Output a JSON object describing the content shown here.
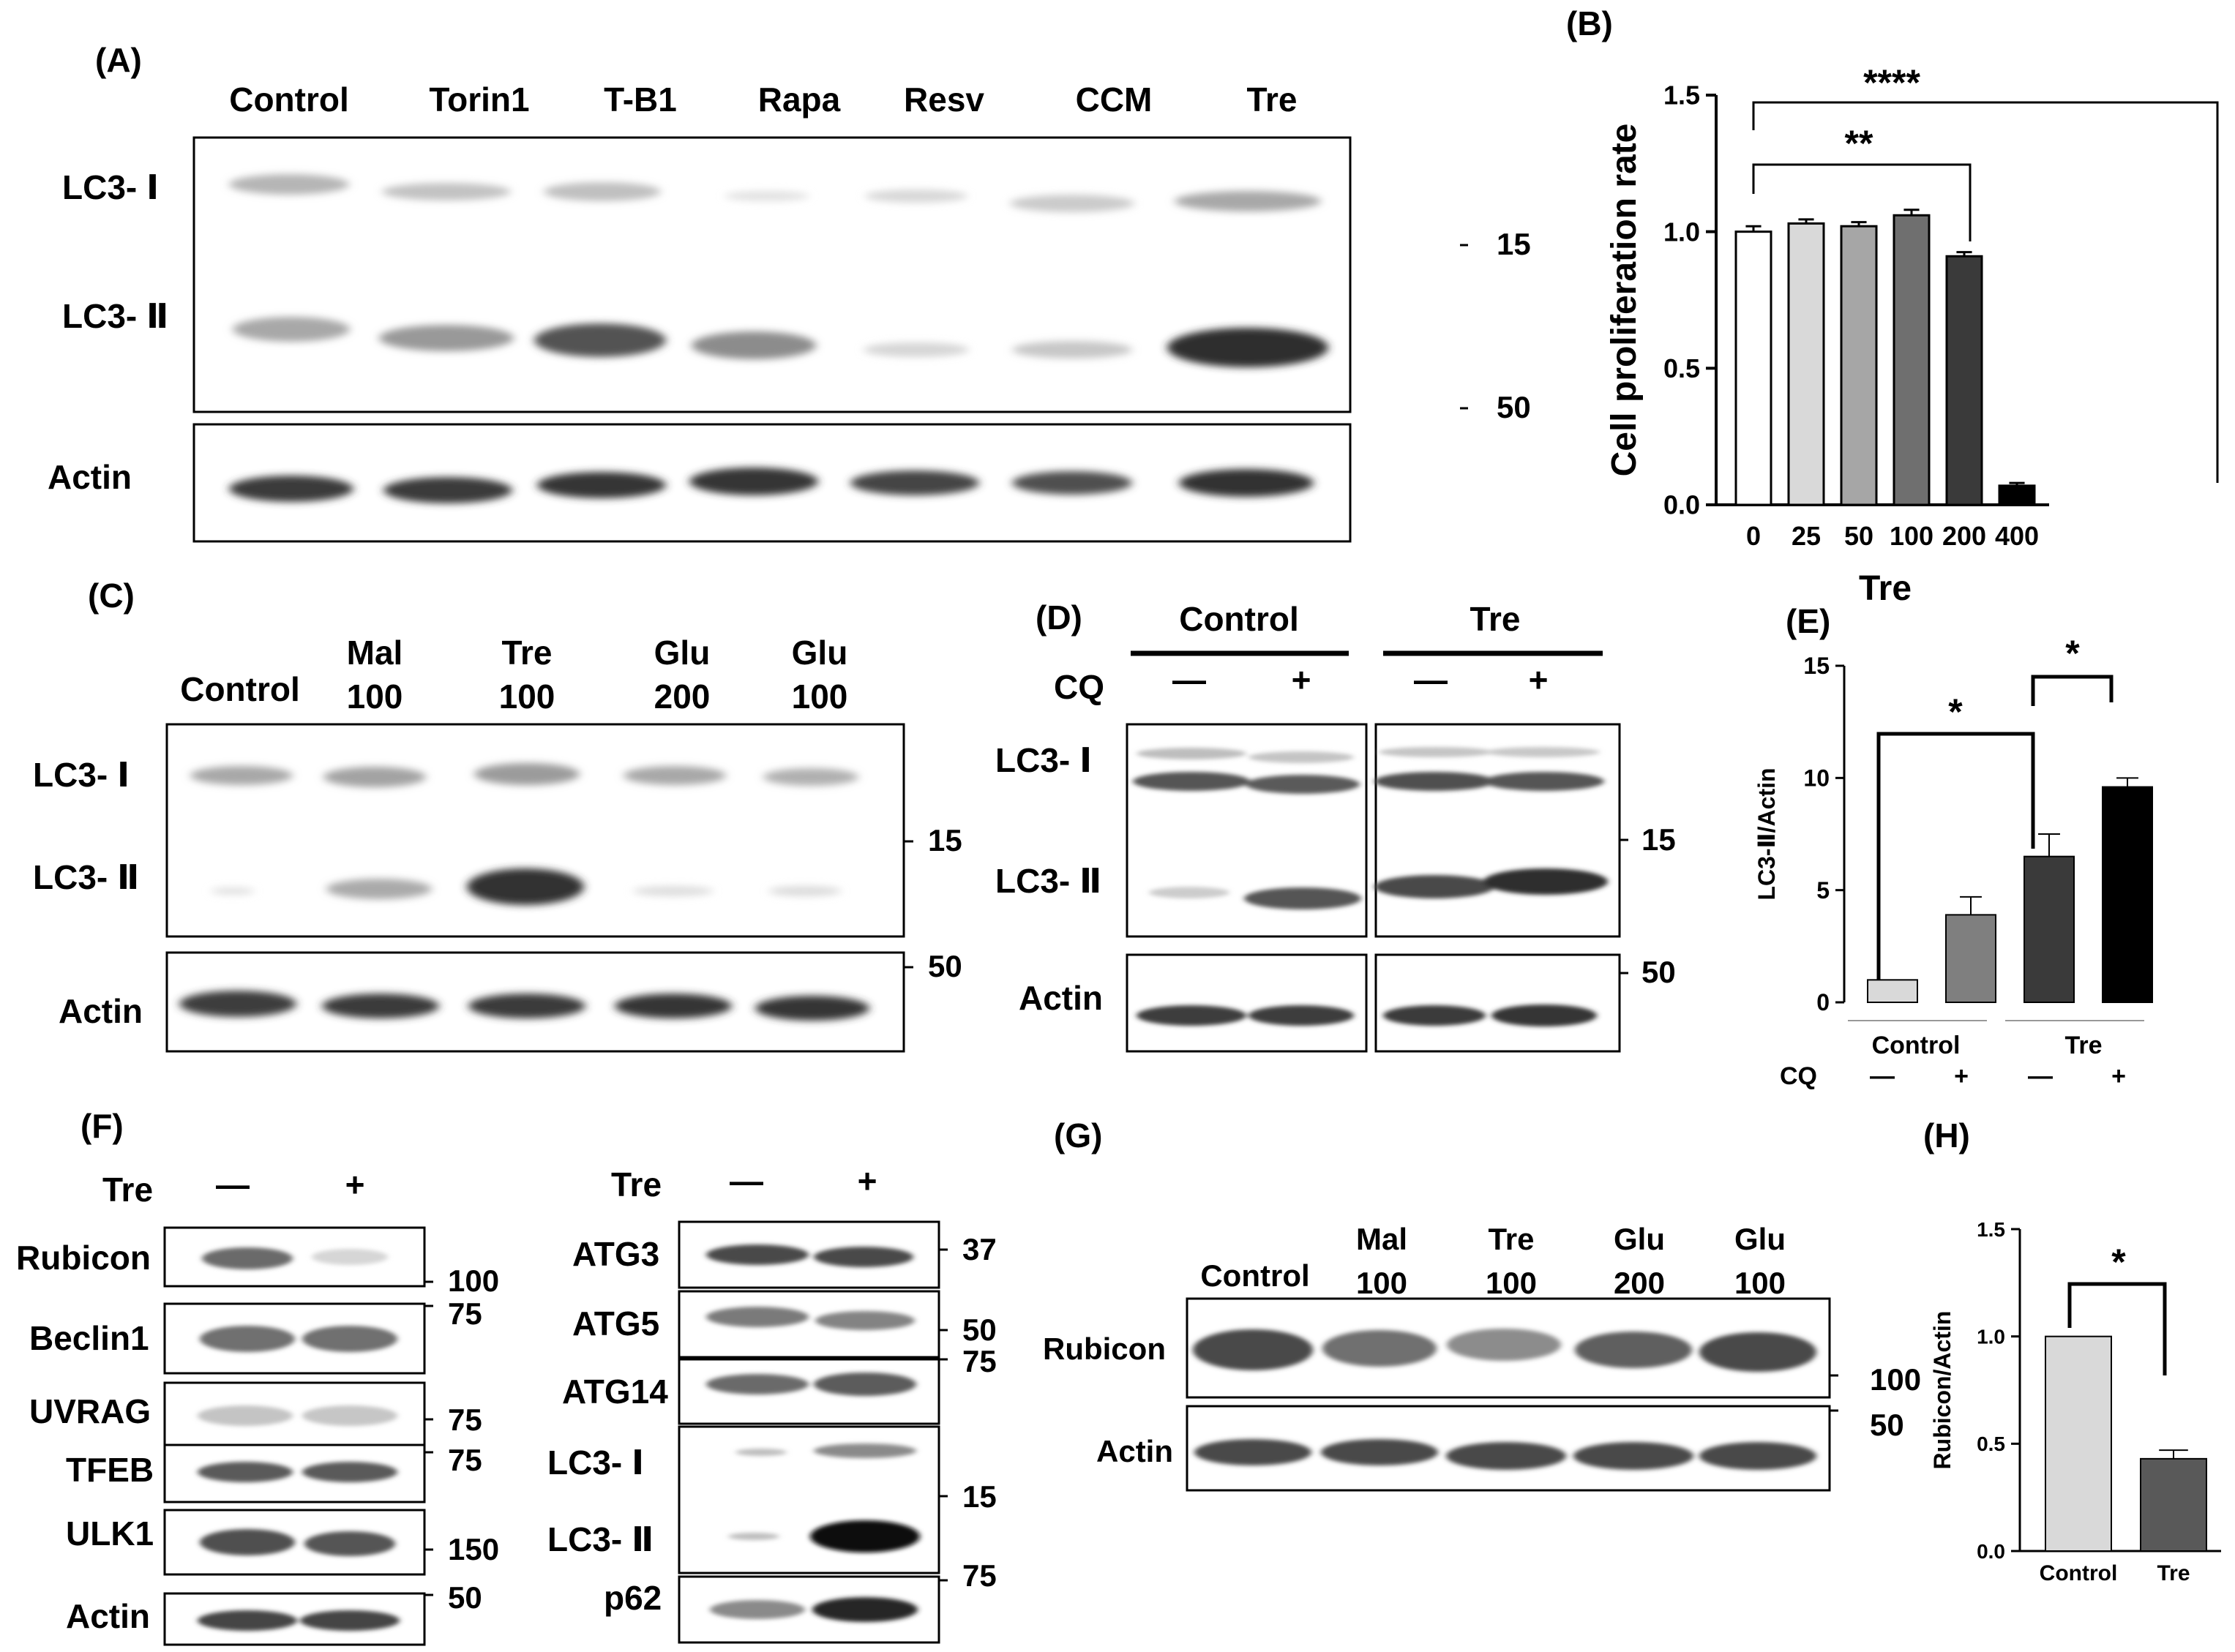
{
  "panels": {
    "A": {
      "label": "(A)",
      "lanes": [
        "Control",
        "Torin1",
        "T-B1",
        "Rapa",
        "Resv",
        "CCM",
        "Tre"
      ],
      "rows": [
        "LC3- Ⅰ",
        "LC3- Ⅱ",
        "Actin"
      ],
      "markers": [
        "15",
        "50"
      ]
    },
    "B": {
      "label": "(B)",
      "sig": [
        "****",
        "**"
      ]
    },
    "C": {
      "label": "(C)",
      "lanes": [
        [
          "Control",
          ""
        ],
        [
          "Mal",
          "100"
        ],
        [
          "Tre",
          "100"
        ],
        [
          "Glu",
          "200"
        ],
        [
          "Glu",
          "100"
        ]
      ],
      "rows": [
        "LC3- Ⅰ",
        "LC3- Ⅱ",
        "Actin"
      ],
      "markers": [
        "15",
        "50"
      ]
    },
    "D": {
      "label": "(D)",
      "groups": [
        "Control",
        "Tre"
      ],
      "cq_label": "CQ",
      "cq_signs": [
        "—",
        "+",
        "—",
        "+"
      ],
      "rows": [
        "LC3- Ⅰ",
        "LC3- Ⅱ",
        "Actin"
      ],
      "markers": [
        "15",
        "50"
      ]
    },
    "E": {
      "label": "(E)",
      "groups": [
        "Control",
        "Tre"
      ],
      "cq_label": "CQ",
      "cq_signs": [
        "—",
        "+",
        "—",
        "+"
      ],
      "sig": [
        "*",
        "*"
      ]
    },
    "F": {
      "label": "(F)",
      "tre_label": "Tre",
      "signs": [
        "—",
        "+"
      ],
      "left_rows": [
        "Rubicon",
        "Beclin1",
        "UVRAG",
        "TFEB",
        "ULK1",
        "Actin"
      ],
      "left_markers": [
        "100",
        "75",
        "75",
        "75",
        "150",
        "50"
      ],
      "right_rows": [
        "ATG3",
        "ATG5",
        "ATG14",
        "LC3- Ⅰ",
        "LC3- Ⅱ",
        "p62"
      ],
      "right_markers": [
        "37",
        "50",
        "75",
        "15",
        "75"
      ]
    },
    "G": {
      "label": "(G)",
      "lanes": [
        [
          "Control",
          ""
        ],
        [
          "Mal",
          "100"
        ],
        [
          "Tre",
          "100"
        ],
        [
          "Glu",
          "200"
        ],
        [
          "Glu",
          "100"
        ]
      ],
      "rows": [
        "Rubicon",
        "Actin"
      ],
      "markers": [
        "100",
        "50"
      ]
    },
    "H": {
      "label": "(H)",
      "sig": [
        "*"
      ]
    }
  },
  "chart_data": [
    {
      "panel": "B",
      "type": "bar",
      "categories": [
        "0",
        "25",
        "50",
        "100",
        "200",
        "400"
      ],
      "values": [
        1.0,
        1.03,
        1.02,
        1.06,
        0.91,
        0.07
      ],
      "errors": [
        0.02,
        0.015,
        0.015,
        0.02,
        0.015,
        0.01
      ],
      "colors": [
        "#ffffff",
        "#d9d9d9",
        "#a6a6a6",
        "#6f6f6f",
        "#3a3a3a",
        "#000000"
      ],
      "xlabel": "Tre",
      "ylabel": "Cell proliferation rate",
      "ylim": [
        0,
        1.5
      ],
      "yticks": [
        "0.0",
        "0.5",
        "1.0",
        "1.5"
      ]
    },
    {
      "panel": "E",
      "type": "bar",
      "categories": [
        "Control —",
        "Control +",
        "Tre —",
        "Tre +"
      ],
      "values": [
        1.0,
        3.9,
        6.5,
        9.6
      ],
      "errors": [
        0.0,
        0.8,
        1.0,
        0.4
      ],
      "colors": [
        "#d9d9d9",
        "#7f7f7f",
        "#3a3a3a",
        "#000000"
      ],
      "xlabel": "",
      "ylabel": "LC3-Ⅱ/Actin",
      "ylim": [
        0,
        15
      ],
      "yticks": [
        "0",
        "5",
        "10",
        "15"
      ]
    },
    {
      "panel": "H",
      "type": "bar",
      "categories": [
        "Control",
        "Tre"
      ],
      "values": [
        1.0,
        0.43
      ],
      "errors": [
        0.0,
        0.04
      ],
      "colors": [
        "#d9d9d9",
        "#595959"
      ],
      "xlabel": "",
      "ylabel": "Rubicon/Actin",
      "ylim": [
        0,
        1.5
      ],
      "yticks": [
        "0.0",
        "0.5",
        "1.0",
        "1.5"
      ]
    }
  ]
}
